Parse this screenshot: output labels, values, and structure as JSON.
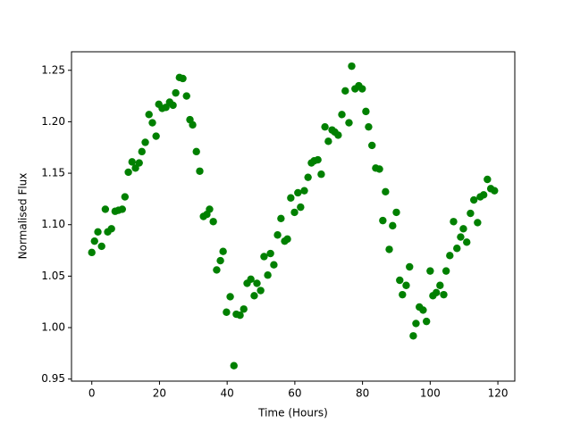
{
  "chart_data": {
    "type": "scatter",
    "xlabel": "Time (Hours)",
    "ylabel": "Normalised Flux",
    "color": "#008000",
    "x": [
      0,
      0.8,
      1.8,
      2.9,
      4,
      4.7,
      5.8,
      6.9,
      7.9,
      9,
      9.8,
      10.8,
      11.9,
      12.9,
      14,
      14.8,
      15.8,
      16.9,
      17.9,
      19,
      19.8,
      20.8,
      21.9,
      23,
      24,
      24.8,
      25.9,
      26.9,
      28,
      29,
      29.8,
      30.9,
      31.9,
      33,
      34,
      34.8,
      35.9,
      36.9,
      38,
      38.8,
      39.8,
      40.9,
      42,
      42.7,
      43.8,
      44.9,
      45.9,
      47,
      48,
      48.8,
      49.9,
      50.9,
      52,
      52.8,
      53.8,
      54.9,
      55.9,
      57,
      57.8,
      58.8,
      59.9,
      60.9,
      61.7,
      62.8,
      63.9,
      64.9,
      65.7,
      66.8,
      67.8,
      68.9,
      69.9,
      71,
      71.8,
      72.8,
      73.9,
      74.9,
      76,
      76.8,
      77.8,
      78.9,
      79.9,
      81,
      81.8,
      82.8,
      83.9,
      85,
      86,
      86.8,
      87.9,
      88.9,
      90,
      91,
      91.8,
      92.9,
      93.9,
      95,
      95.8,
      96.8,
      97.9,
      98.9,
      100,
      100.8,
      101.8,
      102.9,
      104,
      104.7,
      105.8,
      106.9,
      107.9,
      109,
      109.8,
      110.8,
      111.9,
      112.9,
      114,
      114.8,
      115.8,
      116.9,
      117.9,
      119
    ],
    "values": [
      1.073,
      1.084,
      1.093,
      1.079,
      1.115,
      1.093,
      1.096,
      1.113,
      1.114,
      1.115,
      1.127,
      1.151,
      1.161,
      1.155,
      1.16,
      1.171,
      1.18,
      1.207,
      1.199,
      1.186,
      1.217,
      1.213,
      1.214,
      1.219,
      1.216,
      1.228,
      1.243,
      1.242,
      1.225,
      1.202,
      1.197,
      1.171,
      1.152,
      1.108,
      1.11,
      1.115,
      1.103,
      1.056,
      1.065,
      1.074,
      1.015,
      1.03,
      0.963,
      1.013,
      1.012,
      1.018,
      1.043,
      1.047,
      1.031,
      1.043,
      1.036,
      1.069,
      1.051,
      1.072,
      1.061,
      1.09,
      1.106,
      1.084,
      1.086,
      1.126,
      1.112,
      1.131,
      1.117,
      1.133,
      1.146,
      1.16,
      1.162,
      1.163,
      1.149,
      1.195,
      1.181,
      1.192,
      1.19,
      1.187,
      1.207,
      1.23,
      1.199,
      1.254,
      1.232,
      1.235,
      1.232,
      1.21,
      1.195,
      1.177,
      1.155,
      1.154,
      1.104,
      1.132,
      1.076,
      1.099,
      1.112,
      1.046,
      1.032,
      1.041,
      1.059,
      0.992,
      1.004,
      1.02,
      1.017,
      1.006,
      1.055,
      1.031,
      1.034,
      1.041,
      1.032,
      1.055,
      1.07,
      1.103,
      1.077,
      1.088,
      1.096,
      1.083,
      1.111,
      1.124,
      1.102,
      1.127,
      1.129,
      1.144,
      1.135,
      1.133
    ],
    "xlim": [
      -6,
      125
    ],
    "ylim": [
      0.948,
      1.268
    ],
    "xticks": [
      0,
      20,
      40,
      60,
      80,
      100,
      120
    ],
    "yticks": [
      0.95,
      {
        "value": 1,
        "label": "1.00"
      },
      1.05,
      {
        "value": 1.1,
        "label": "1.10"
      },
      1.15,
      {
        "value": 1.2,
        "label": "1.20"
      },
      1.25
    ]
  }
}
